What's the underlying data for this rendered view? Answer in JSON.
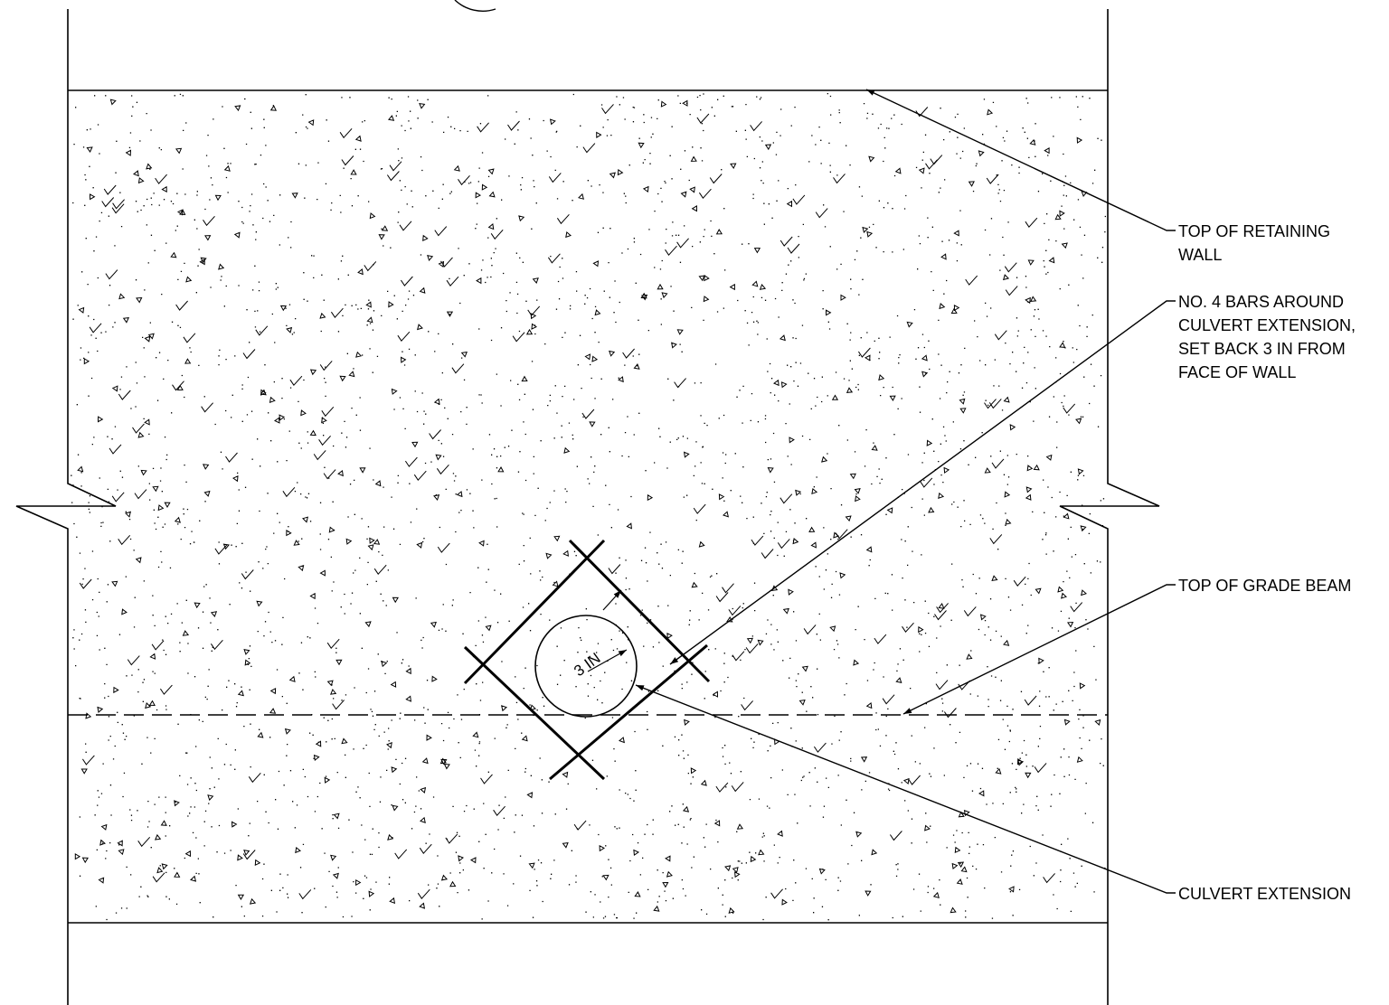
{
  "callouts": {
    "top_of_wall": [
      "TOP OF RETAINING",
      "WALL"
    ],
    "bars": [
      "NO. 4 BARS AROUND",
      "CULVERT EXTENSION,",
      "SET BACK 3 IN FROM",
      "FACE OF WALL"
    ],
    "grade_beam": [
      "TOP OF GRADE BEAM"
    ],
    "culvert": [
      "CULVERT EXTENSION"
    ]
  },
  "dimension": {
    "setback": "3 IN"
  },
  "colors": {
    "ink": "#000000",
    "paper": "#ffffff"
  }
}
